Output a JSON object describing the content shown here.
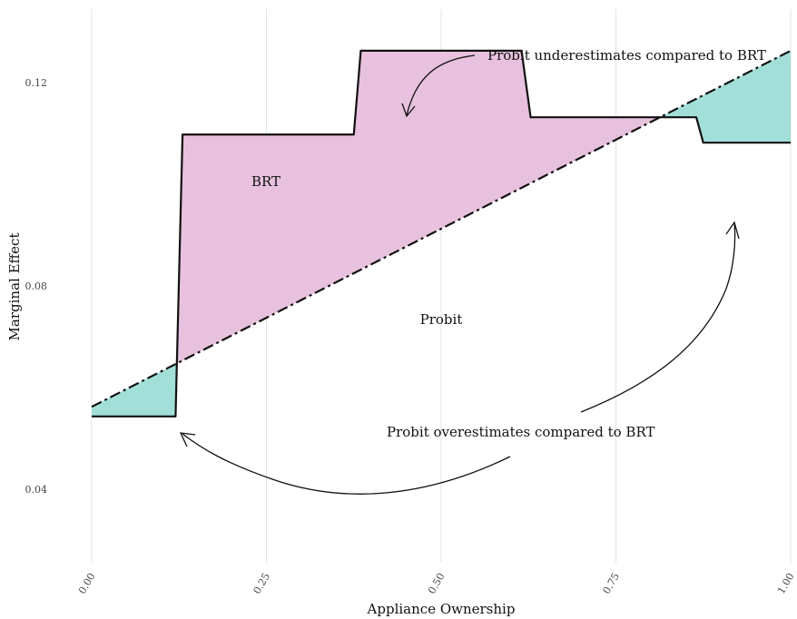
{
  "chart_data": {
    "type": "line",
    "xlabel": "Appliance Ownership",
    "ylabel": "Marginal Effect",
    "xlim": [
      0,
      1
    ],
    "ylim": [
      0.0255,
      0.1345
    ],
    "x_ticks": [
      0.0,
      0.25,
      0.5,
      0.75,
      1.0
    ],
    "x_tick_labels": [
      "0.00",
      "0.25",
      "0.50",
      "0.75",
      "1.00"
    ],
    "y_ticks": [
      0.04,
      0.08,
      0.12
    ],
    "y_tick_labels": [
      "0.04",
      "0.08",
      "0.12"
    ],
    "grid": "vertical only",
    "series": [
      {
        "name": "BRT",
        "style": "solid",
        "color": "#111111",
        "x": [
          0.0,
          0.12,
          0.13,
          0.375,
          0.385,
          0.615,
          0.628,
          0.865,
          0.875,
          1.0
        ],
        "y": [
          0.0543,
          0.0543,
          0.1098,
          0.1098,
          0.1263,
          0.1263,
          0.1132,
          0.1132,
          0.1082,
          0.1082
        ]
      },
      {
        "name": "Probit",
        "style": "dash-dot",
        "color": "#111111",
        "x": [
          0.0,
          1.0
        ],
        "y": [
          0.0562,
          0.1263
        ]
      }
    ],
    "fills": {
      "probit_overestimates_color": "#a2dfd9",
      "probit_underestimates_color": "#e8c1de"
    },
    "annotations": [
      "Probit underestimates compared to BRT",
      "Probit overestimates compared to BRT"
    ]
  }
}
